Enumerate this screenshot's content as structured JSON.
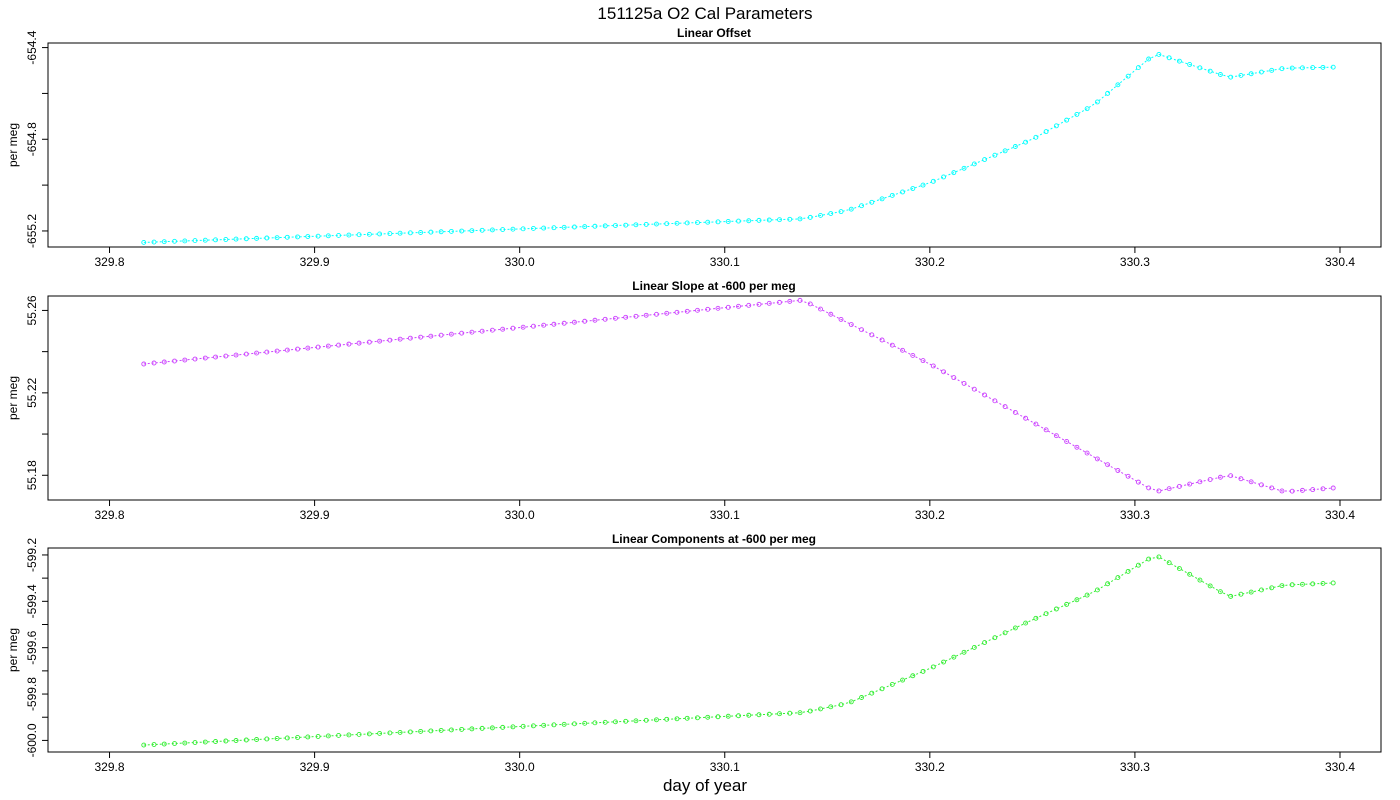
{
  "figure": {
    "title": "151125a   O2 Cal Parameters",
    "xlabel": "day of year"
  },
  "chart_data": [
    {
      "type": "line",
      "title": "Linear Offset",
      "ylabel": "per meg",
      "color": "#00ffff",
      "xlim": [
        329.77,
        330.42
      ],
      "ylim": [
        -655.27,
        -654.38
      ],
      "xticks": [
        "329.8",
        "329.9",
        "330.0",
        "330.1",
        "330.2",
        "330.3",
        "330.4"
      ],
      "yticks": [
        "-655.2",
        "-654.8",
        "-654.4"
      ],
      "x_start": 329.8167,
      "x_step": 0.005,
      "key_x": [
        329.8167,
        330.138,
        330.16,
        330.2,
        330.25,
        330.28,
        330.31,
        330.346,
        330.373,
        330.399
      ],
      "key_y": [
        -655.25,
        -655.147,
        -655.11,
        -654.99,
        -654.8,
        -654.65,
        -654.425,
        -654.53,
        -654.49,
        -654.485
      ]
    },
    {
      "type": "line",
      "title": "Linear Slope at -600 per meg",
      "ylabel": "per meg",
      "color": "#cc44ff",
      "xlim": [
        329.77,
        330.42
      ],
      "ylim": [
        55.168,
        55.267
      ],
      "xticks": [
        "329.8",
        "329.9",
        "330.0",
        "330.1",
        "330.2",
        "330.3",
        "330.4"
      ],
      "yticks": [
        "55.18",
        "55.22",
        "55.26"
      ],
      "x_start": 329.8167,
      "x_step": 0.005,
      "key_x": [
        329.8167,
        330.138,
        330.2,
        330.31,
        330.346,
        330.373,
        330.399
      ],
      "key_y": [
        55.234,
        55.265,
        55.234,
        55.172,
        55.18,
        55.172,
        55.174
      ]
    },
    {
      "type": "line",
      "title": "Linear Components at -600 per meg",
      "ylabel": "per meg",
      "color": "#33ee33",
      "xlim": [
        329.77,
        330.42
      ],
      "ylim": [
        -600.05,
        -599.17
      ],
      "xticks": [
        "329.8",
        "329.9",
        "330.0",
        "330.1",
        "330.2",
        "330.3",
        "330.4"
      ],
      "yticks": [
        "-600.0",
        "-599.8",
        "-599.6",
        "-599.4",
        "-599.2"
      ],
      "x_start": 329.8167,
      "x_step": 0.005,
      "key_x": [
        329.8167,
        330.138,
        330.16,
        330.2,
        330.25,
        330.28,
        330.31,
        330.346,
        330.373,
        330.399
      ],
      "key_y": [
        -600.02,
        -599.88,
        -599.84,
        -599.69,
        -599.48,
        -599.36,
        -599.2,
        -599.38,
        -599.33,
        -599.32
      ]
    }
  ]
}
